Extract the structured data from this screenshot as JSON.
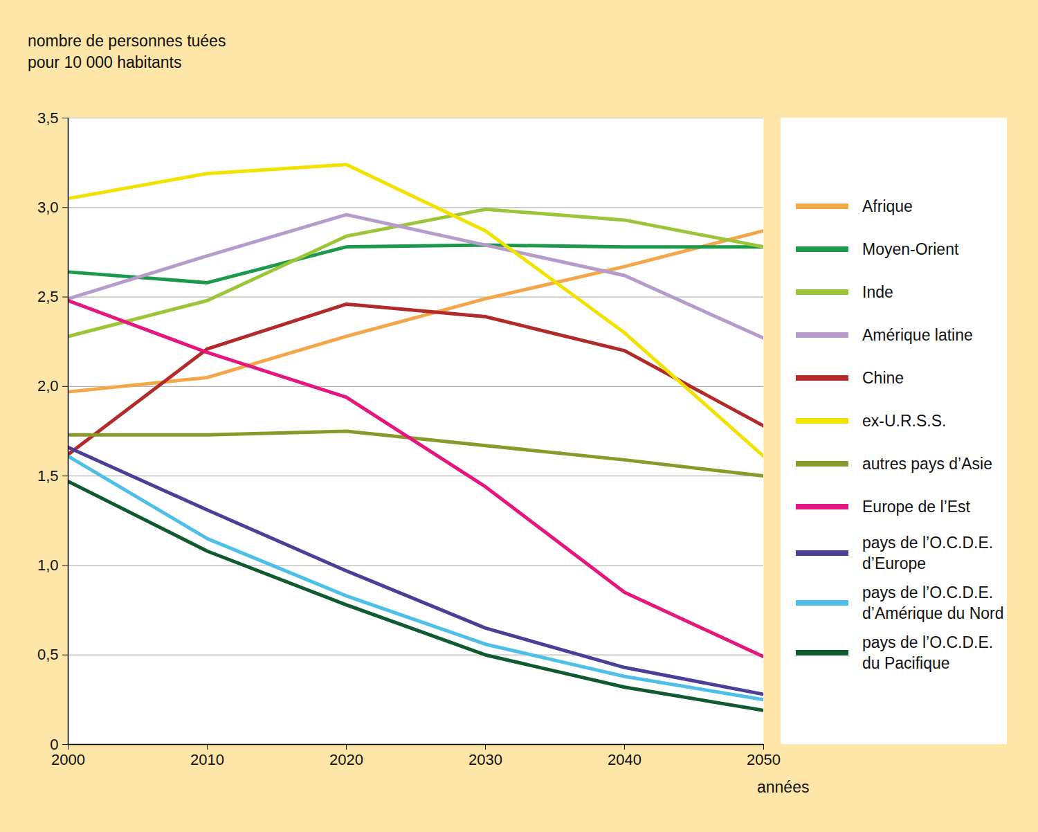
{
  "chart_data": {
    "type": "line",
    "y_label": "nombre de personnes tuées\npour 10 000 habitants",
    "x_label": "années",
    "x": [
      2000,
      2010,
      2020,
      2030,
      2040,
      2050
    ],
    "xlim": [
      2000,
      2050
    ],
    "xticks": [
      2000,
      2010,
      2020,
      2030,
      2040,
      2050
    ],
    "ylim": [
      0,
      3.5
    ],
    "yticks": [
      0,
      {
        "value": 0.5,
        "label": "0,5"
      },
      {
        "value": 1,
        "label": "1,0"
      },
      {
        "value": 1.5,
        "label": "1,5"
      },
      {
        "value": 2,
        "label": "2,0"
      },
      {
        "value": 2.5,
        "label": "2,5"
      },
      {
        "value": 3,
        "label": "3,0"
      },
      {
        "value": 3.5,
        "label": "3,5"
      }
    ],
    "grid": true,
    "legend": "right",
    "series": [
      {
        "name": "Afrique",
        "color": "#f4a64b",
        "values": [
          1.97,
          2.05,
          2.28,
          2.49,
          2.67,
          2.87
        ]
      },
      {
        "name": "Moyen-Orient",
        "color": "#1a9a4a",
        "values": [
          2.64,
          2.58,
          2.78,
          2.79,
          2.78,
          2.78
        ]
      },
      {
        "name": "Inde",
        "color": "#9cc53a",
        "values": [
          2.28,
          2.48,
          2.84,
          2.99,
          2.93,
          2.78
        ]
      },
      {
        "name": "Amérique latine",
        "color": "#b59ccb",
        "values": [
          2.49,
          2.73,
          2.96,
          2.79,
          2.62,
          2.27
        ]
      },
      {
        "name": "Chine",
        "color": "#b22a2a",
        "values": [
          1.62,
          2.21,
          2.46,
          2.39,
          2.2,
          1.78
        ]
      },
      {
        "name": "ex-U.R.S.S.",
        "color": "#f2e200",
        "values": [
          3.05,
          3.19,
          3.24,
          2.87,
          2.3,
          1.61
        ]
      },
      {
        "name": "autres pays d’Asie",
        "color": "#8a9a2a",
        "values": [
          1.73,
          1.73,
          1.75,
          1.67,
          1.59,
          1.5
        ]
      },
      {
        "name": "Europe de l’Est",
        "color": "#e6167f",
        "values": [
          2.48,
          2.19,
          1.94,
          1.44,
          0.85,
          0.49
        ]
      },
      {
        "name": "pays de l’O.C.D.E.\nd’Europe",
        "color": "#4b3f98",
        "values": [
          1.66,
          1.31,
          0.97,
          0.65,
          0.43,
          0.28
        ]
      },
      {
        "name": "pays de l’O.C.D.E.\nd’Amérique du Nord",
        "color": "#4dbfe8",
        "values": [
          1.61,
          1.15,
          0.83,
          0.56,
          0.38,
          0.25
        ]
      },
      {
        "name": "pays de l’O.C.D.E.\ndu Pacifique",
        "color": "#0f5a2e",
        "values": [
          1.47,
          1.08,
          0.78,
          0.5,
          0.32,
          0.19
        ]
      }
    ]
  }
}
